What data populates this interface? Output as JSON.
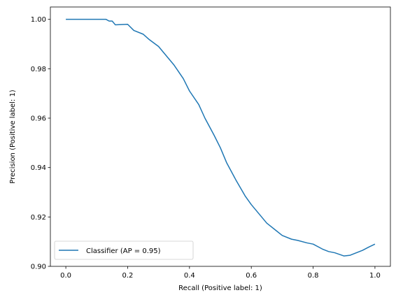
{
  "chart_data": {
    "type": "line",
    "title": "",
    "xlabel": "Recall (Positive label: 1)",
    "ylabel": "Precision (Positive label: 1)",
    "xlim": [
      -0.05,
      1.05
    ],
    "ylim": [
      0.9,
      1.005
    ],
    "xticks": [
      0.0,
      0.2,
      0.4,
      0.6,
      0.8,
      1.0
    ],
    "xtick_labels": [
      "0.0",
      "0.2",
      "0.4",
      "0.6",
      "0.8",
      "1.0"
    ],
    "yticks": [
      0.9,
      0.92,
      0.94,
      0.96,
      0.98,
      1.0
    ],
    "ytick_labels": [
      "0.90",
      "0.92",
      "0.94",
      "0.96",
      "0.98",
      "1.00"
    ],
    "grid": false,
    "legend_position": "lower-left",
    "series": [
      {
        "name": "Classifier (AP = 0.95)",
        "color": "#1f77b4",
        "x": [
          0.0,
          0.05,
          0.1,
          0.13,
          0.14,
          0.15,
          0.16,
          0.2,
          0.22,
          0.25,
          0.27,
          0.3,
          0.32,
          0.35,
          0.38,
          0.4,
          0.43,
          0.45,
          0.48,
          0.5,
          0.52,
          0.55,
          0.58,
          0.6,
          0.63,
          0.65,
          0.68,
          0.7,
          0.73,
          0.75,
          0.78,
          0.8,
          0.83,
          0.85,
          0.87,
          0.9,
          0.92,
          0.94,
          0.96,
          0.98,
          1.0
        ],
        "y": [
          1.0,
          1.0,
          1.0,
          1.0,
          0.9993,
          0.9993,
          0.9978,
          0.998,
          0.9955,
          0.994,
          0.9918,
          0.989,
          0.986,
          0.9815,
          0.976,
          0.971,
          0.9655,
          0.96,
          0.953,
          0.948,
          0.942,
          0.935,
          0.9285,
          0.925,
          0.9205,
          0.9175,
          0.9145,
          0.9125,
          0.911,
          0.9105,
          0.9095,
          0.909,
          0.907,
          0.906,
          0.9055,
          0.9042,
          0.9045,
          0.9055,
          0.9065,
          0.9078,
          0.909
        ]
      }
    ]
  }
}
